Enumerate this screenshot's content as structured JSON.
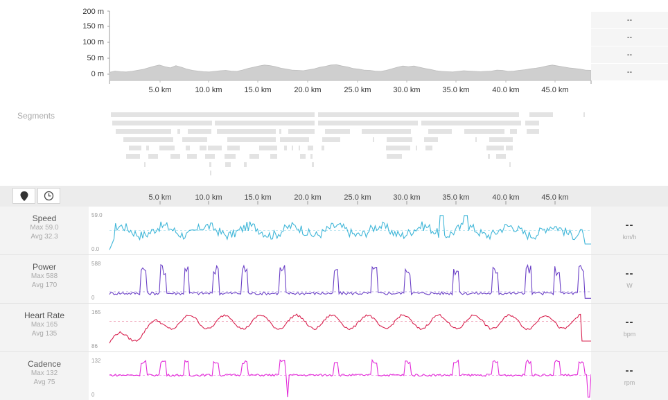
{
  "elevation": {
    "y_labels": [
      "200 m",
      "150 m",
      "100 m",
      "50 m",
      "0 m"
    ],
    "x_labels": [
      "5.0 km",
      "10.0 km",
      "15.0 km",
      "20.0 km",
      "25.0 km",
      "30.0 km",
      "35.0 km",
      "40.0 km",
      "45.0 km"
    ],
    "profile_m": [
      6,
      10,
      8,
      7,
      9,
      12,
      15,
      20,
      25,
      29,
      24,
      20,
      27,
      22,
      16,
      12,
      10,
      8,
      7,
      9,
      11,
      12,
      10,
      9,
      13,
      18,
      22,
      26,
      29,
      27,
      24,
      19,
      16,
      13,
      12,
      11,
      14,
      17,
      22,
      25,
      29,
      30,
      26,
      23,
      18,
      16,
      13,
      12,
      10,
      9,
      12,
      17,
      22,
      26,
      24,
      26,
      22,
      18,
      15,
      11,
      9,
      8,
      7,
      9,
      11,
      10,
      9,
      8,
      9,
      10,
      13,
      12,
      9,
      10,
      12,
      14,
      17,
      19,
      22,
      26,
      29,
      26,
      23,
      20,
      18,
      16,
      13,
      12
    ]
  },
  "side_values": [
    "--",
    "--",
    "--",
    "--"
  ],
  "segments_label": "Segments",
  "toolbar": {
    "map_icon": "map-pin-icon",
    "time_icon": "clock-icon",
    "x_labels": [
      "5.0 km",
      "10.0 km",
      "15.0 km",
      "20.0 km",
      "25.0 km",
      "30.0 km",
      "35.0 km",
      "40.0 km",
      "45.0 km"
    ]
  },
  "streams": [
    {
      "name": "Speed",
      "max_label": "Max 59.0",
      "avg_label": "Avg 32.3",
      "top": "59.0",
      "bottom": "0.0",
      "value": "--",
      "unit": "km/h",
      "color": "#3fb6d8"
    },
    {
      "name": "Power",
      "max_label": "Max 588",
      "avg_label": "Avg 170",
      "top": "588",
      "bottom": "0",
      "value": "--",
      "unit": "W",
      "color": "#6a3fc6"
    },
    {
      "name": "Heart Rate",
      "max_label": "Max 165",
      "avg_label": "Avg 135",
      "top": "165",
      "bottom": "86",
      "value": "--",
      "unit": "bpm",
      "color": "#d8204e"
    },
    {
      "name": "Cadence",
      "max_label": "Max 132",
      "avg_label": "Avg 75",
      "top": "132",
      "bottom": "0",
      "value": "--",
      "unit": "rpm",
      "color": "#e22ad8"
    }
  ]
}
